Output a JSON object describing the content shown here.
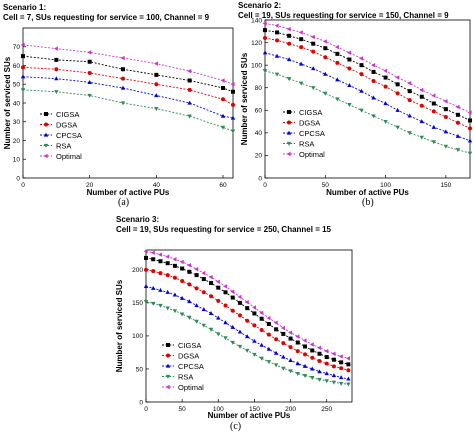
{
  "chart_data": [
    {
      "type": "line",
      "title": "Scenario 1:",
      "subtitle": "Cell = 7, SUs requesting for service = 100, Channel = 9",
      "xlabel": "Number of active PUs",
      "ylabel": "Number of serviced SUs",
      "xlim": [
        0,
        63
      ],
      "ylim": [
        0,
        80
      ],
      "xticks": [
        0,
        20,
        40,
        60
      ],
      "yticks": [
        0,
        10,
        20,
        30,
        40,
        50,
        60,
        70
      ],
      "caption": "(a)",
      "legend_position": "bottom-left",
      "series": [
        {
          "name": "CIGSA",
          "marker": "square",
          "color": "#000000",
          "x": [
            0,
            10,
            20,
            30,
            40,
            50,
            60,
            63
          ],
          "y": [
            65,
            63,
            62,
            58,
            55,
            52,
            48,
            46
          ]
        },
        {
          "name": "DGSA",
          "marker": "circle",
          "color": "#e00000",
          "x": [
            0,
            10,
            20,
            30,
            40,
            50,
            60,
            63
          ],
          "y": [
            59,
            58,
            56,
            53,
            50,
            47,
            42,
            39
          ]
        },
        {
          "name": "CPCSA",
          "marker": "triangle-up",
          "color": "#0000dd",
          "x": [
            0,
            10,
            20,
            30,
            40,
            50,
            60,
            63
          ],
          "y": [
            54,
            53,
            51,
            48,
            44,
            40,
            33,
            32
          ]
        },
        {
          "name": "RSA",
          "marker": "triangle-down",
          "color": "#2e8b57",
          "x": [
            0,
            10,
            20,
            30,
            40,
            50,
            60,
            63
          ],
          "y": [
            47,
            46,
            44,
            40,
            37,
            33,
            27,
            25
          ]
        },
        {
          "name": "Optimal",
          "marker": "triangle-left",
          "color": "#cc33cc",
          "x": [
            0,
            10,
            20,
            30,
            40,
            50,
            60,
            63
          ],
          "y": [
            71,
            69,
            67,
            64,
            61,
            57,
            52,
            50
          ]
        }
      ]
    },
    {
      "type": "line",
      "title": "Scenario 2:",
      "subtitle": "Cell = 19, SUs requesting for service = 150, Channel = 9",
      "xlabel": "Number of active PUs",
      "ylabel": "Number of serviced SUs",
      "xlim": [
        0,
        170
      ],
      "ylim": [
        0,
        140
      ],
      "xticks": [
        0,
        50,
        100,
        150
      ],
      "yticks": [
        0,
        20,
        40,
        60,
        80,
        100,
        120,
        140
      ],
      "caption": "(b)",
      "legend_position": "bottom-left",
      "series": [
        {
          "name": "CIGSA",
          "marker": "square",
          "color": "#000000",
          "x": [
            0,
            10,
            20,
            30,
            40,
            50,
            60,
            70,
            80,
            90,
            100,
            110,
            120,
            130,
            140,
            150,
            160,
            170
          ],
          "y": [
            131,
            129,
            126,
            123,
            119,
            115,
            110,
            105,
            100,
            94,
            89,
            83,
            77,
            72,
            66,
            61,
            56,
            51
          ]
        },
        {
          "name": "DGSA",
          "marker": "circle",
          "color": "#e00000",
          "x": [
            0,
            10,
            20,
            30,
            40,
            50,
            60,
            70,
            80,
            90,
            100,
            110,
            120,
            130,
            140,
            150,
            160,
            170
          ],
          "y": [
            124,
            122,
            119,
            116,
            112,
            107,
            102,
            97,
            92,
            86,
            81,
            75,
            69,
            64,
            59,
            54,
            49,
            44
          ]
        },
        {
          "name": "CPCSA",
          "marker": "triangle-up",
          "color": "#0000dd",
          "x": [
            0,
            10,
            20,
            30,
            40,
            50,
            60,
            70,
            80,
            90,
            100,
            110,
            120,
            130,
            140,
            150,
            160,
            170
          ],
          "y": [
            111,
            108,
            105,
            101,
            97,
            92,
            87,
            82,
            77,
            71,
            66,
            60,
            55,
            50,
            45,
            41,
            37,
            33
          ]
        },
        {
          "name": "RSA",
          "marker": "triangle-down",
          "color": "#2e8b57",
          "x": [
            0,
            10,
            20,
            30,
            40,
            50,
            60,
            70,
            80,
            90,
            100,
            110,
            120,
            130,
            140,
            150,
            160,
            170
          ],
          "y": [
            95,
            92,
            88,
            84,
            80,
            75,
            70,
            65,
            60,
            55,
            50,
            45,
            40,
            36,
            32,
            28,
            25,
            22
          ]
        },
        {
          "name": "Optimal",
          "marker": "triangle-left",
          "color": "#cc33cc",
          "x": [
            0,
            10,
            20,
            30,
            40,
            50,
            60,
            70,
            80,
            90,
            100,
            110,
            120,
            130,
            140,
            150,
            160,
            170
          ],
          "y": [
            137,
            135,
            132,
            129,
            125,
            121,
            116,
            111,
            106,
            100,
            95,
            89,
            84,
            78,
            73,
            68,
            63,
            58
          ]
        }
      ]
    },
    {
      "type": "line",
      "title": "Scenario 3:",
      "subtitle": "Cell = 19, SUs requesting for service = 250, Channel = 15",
      "xlabel": "Number of active PUs",
      "ylabel": "Number of serviced SUs",
      "xlim": [
        0,
        285
      ],
      "ylim": [
        0,
        230
      ],
      "xticks": [
        0,
        50,
        100,
        150,
        200,
        250
      ],
      "yticks": [
        0,
        50,
        100,
        150,
        200
      ],
      "caption": "(c)",
      "legend_position": "bottom-left",
      "series": [
        {
          "name": "CIGSA",
          "marker": "square",
          "color": "#000000",
          "x": [
            0,
            10,
            20,
            30,
            40,
            50,
            60,
            70,
            80,
            90,
            100,
            110,
            120,
            130,
            140,
            150,
            160,
            170,
            180,
            190,
            200,
            210,
            220,
            230,
            240,
            250,
            260,
            270,
            280
          ],
          "y": [
            218,
            216,
            213,
            210,
            206,
            202,
            197,
            192,
            186,
            180,
            173,
            166,
            158,
            150,
            142,
            134,
            126,
            118,
            110,
            103,
            96,
            90,
            84,
            78,
            73,
            68,
            64,
            60,
            57
          ]
        },
        {
          "name": "DGSA",
          "marker": "circle",
          "color": "#e00000",
          "x": [
            0,
            10,
            20,
            30,
            40,
            50,
            60,
            70,
            80,
            90,
            100,
            110,
            120,
            130,
            140,
            150,
            160,
            170,
            180,
            190,
            200,
            210,
            220,
            230,
            240,
            250,
            260,
            270,
            280
          ],
          "y": [
            200,
            198,
            195,
            192,
            188,
            183,
            178,
            172,
            166,
            160,
            153,
            146,
            138,
            131,
            123,
            116,
            109,
            102,
            95,
            89,
            83,
            77,
            72,
            67,
            62,
            58,
            54,
            51,
            48
          ]
        },
        {
          "name": "CPCSA",
          "marker": "triangle-up",
          "color": "#0000dd",
          "x": [
            0,
            10,
            20,
            30,
            40,
            50,
            60,
            70,
            80,
            90,
            100,
            110,
            120,
            130,
            140,
            150,
            160,
            170,
            180,
            190,
            200,
            210,
            220,
            230,
            240,
            250,
            260,
            270,
            280
          ],
          "y": [
            175,
            172,
            169,
            166,
            162,
            157,
            152,
            146,
            140,
            134,
            127,
            120,
            113,
            106,
            99,
            92,
            86,
            80,
            74,
            68,
            63,
            58,
            54,
            50,
            46,
            43,
            40,
            37,
            35
          ]
        },
        {
          "name": "RSA",
          "marker": "triangle-down",
          "color": "#2e8b57",
          "x": [
            0,
            10,
            20,
            30,
            40,
            50,
            60,
            70,
            80,
            90,
            100,
            110,
            120,
            130,
            140,
            150,
            160,
            170,
            180,
            190,
            200,
            210,
            220,
            230,
            240,
            250,
            260,
            270,
            280
          ],
          "y": [
            152,
            149,
            146,
            142,
            138,
            133,
            128,
            122,
            116,
            110,
            103,
            97,
            90,
            84,
            78,
            72,
            66,
            61,
            56,
            51,
            47,
            43,
            40,
            37,
            34,
            32,
            30,
            28,
            27
          ]
        },
        {
          "name": "Optimal",
          "marker": "triangle-left",
          "color": "#cc33cc",
          "x": [
            0,
            10,
            20,
            30,
            40,
            50,
            60,
            70,
            80,
            90,
            100,
            110,
            120,
            130,
            140,
            150,
            160,
            170,
            180,
            190,
            200,
            210,
            220,
            230,
            240,
            250,
            260,
            270,
            280
          ],
          "y": [
            228,
            226,
            223,
            220,
            216,
            212,
            207,
            201,
            195,
            189,
            182,
            175,
            167,
            159,
            151,
            143,
            135,
            127,
            120,
            112,
            105,
            99,
            93,
            87,
            82,
            77,
            73,
            69,
            66
          ]
        }
      ]
    }
  ]
}
